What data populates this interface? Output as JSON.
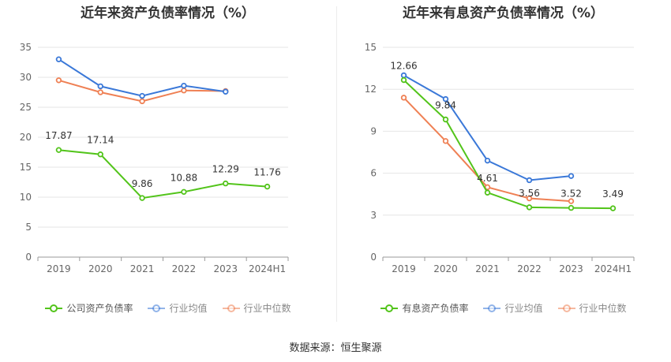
{
  "source_text": "数据来源：恒生聚源",
  "chart_data": [
    {
      "type": "line",
      "title": "近年来资产负债率情况（%）",
      "categories": [
        "2019",
        "2020",
        "2021",
        "2022",
        "2023",
        "2024H1"
      ],
      "ylim": [
        0,
        35
      ],
      "yticks": [
        "0",
        "5",
        "10",
        "15",
        "20",
        "25",
        "30",
        "35"
      ],
      "grid": true,
      "legend_position": "bottom",
      "series": [
        {
          "name": "公司资产负债率",
          "color": "#52c41a",
          "values": [
            17.87,
            17.14,
            9.86,
            10.88,
            12.29,
            11.76
          ],
          "labels": [
            "17.87",
            "17.14",
            "9.86",
            "10.88",
            "12.29",
            "11.76"
          ]
        },
        {
          "name": "行业均值",
          "color": "#3a78d8",
          "values": [
            33.0,
            28.5,
            26.9,
            28.6,
            27.6,
            null
          ]
        },
        {
          "name": "行业中位数",
          "color": "#ef8054",
          "values": [
            29.5,
            27.5,
            26.0,
            27.8,
            27.7,
            null
          ]
        }
      ]
    },
    {
      "type": "line",
      "title": "近年来有息资产负债率情况（%）",
      "categories": [
        "2019",
        "2020",
        "2021",
        "2022",
        "2023",
        "2024H1"
      ],
      "ylim": [
        0,
        15
      ],
      "yticks": [
        "0",
        "3",
        "6",
        "9",
        "12",
        "15"
      ],
      "grid": true,
      "legend_position": "bottom",
      "series": [
        {
          "name": "有息资产负债率",
          "color": "#52c41a",
          "values": [
            12.66,
            9.84,
            4.61,
            3.56,
            3.52,
            3.49
          ],
          "labels": [
            "12.66",
            "9.84",
            "4.61",
            "3.56",
            "3.52",
            "3.49"
          ]
        },
        {
          "name": "行业均值",
          "color": "#3a78d8",
          "values": [
            13.0,
            11.3,
            6.9,
            5.5,
            5.8,
            null
          ]
        },
        {
          "name": "行业中位数",
          "color": "#ef8054",
          "values": [
            11.4,
            8.3,
            5.0,
            4.2,
            4.0,
            null
          ]
        }
      ]
    }
  ]
}
